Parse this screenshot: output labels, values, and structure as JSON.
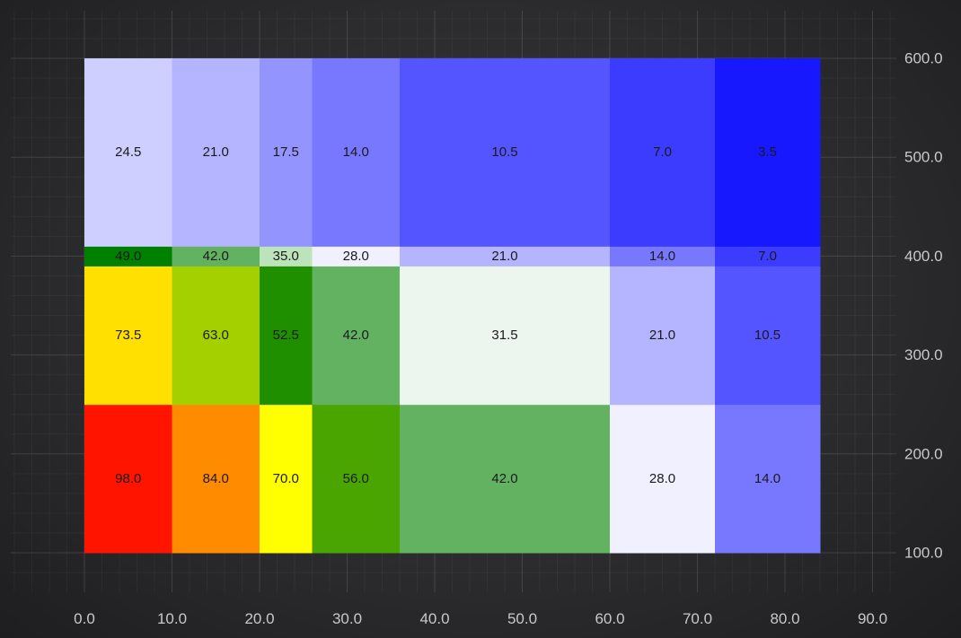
{
  "chart_data": {
    "type": "heatmap",
    "title": "",
    "xlabel": "",
    "ylabel": "",
    "xlim": [
      0,
      90
    ],
    "ylim": [
      100,
      600
    ],
    "x_ticks": [
      "0.0",
      "10.0",
      "20.0",
      "30.0",
      "40.0",
      "50.0",
      "60.0",
      "70.0",
      "80.0",
      "90.0"
    ],
    "y_ticks": [
      "100.0",
      "200.0",
      "300.0",
      "400.0",
      "500.0",
      "600.0"
    ],
    "x_edges": [
      0,
      10,
      20,
      26,
      36,
      60,
      72,
      84
    ],
    "y_edges": [
      100,
      250,
      390,
      410,
      600
    ],
    "grid": true,
    "y_axis_position": "right",
    "cells": [
      [
        {
          "label": "98.0",
          "color": "#ff1400"
        },
        {
          "label": "84.0",
          "color": "#ff8c00"
        },
        {
          "label": "70.0",
          "color": "#ffff00"
        },
        {
          "label": "56.0",
          "color": "#4aa500"
        },
        {
          "label": "42.0",
          "color": "#63b262"
        },
        {
          "label": "28.0",
          "color": "#f0f0ff"
        },
        {
          "label": "14.0",
          "color": "#7878ff"
        }
      ],
      [
        {
          "label": "73.5",
          "color": "#ffe000"
        },
        {
          "label": "63.0",
          "color": "#a4d000"
        },
        {
          "label": "52.5",
          "color": "#1f8f00"
        },
        {
          "label": "42.0",
          "color": "#63b262"
        },
        {
          "label": "31.5",
          "color": "#edf5ef"
        },
        {
          "label": "21.0",
          "color": "#b4b4ff"
        },
        {
          "label": "10.5",
          "color": "#5555ff"
        }
      ],
      [
        {
          "label": "49.0",
          "color": "#008000"
        },
        {
          "label": "42.0",
          "color": "#63b262"
        },
        {
          "label": "35.0",
          "color": "#bde3bb"
        },
        {
          "label": "28.0",
          "color": "#f0f0ff"
        },
        {
          "label": "21.0",
          "color": "#b4b4ff"
        },
        {
          "label": "14.0",
          "color": "#7878ff"
        },
        {
          "label": "7.0",
          "color": "#3c3cff"
        }
      ],
      [
        {
          "label": "24.5",
          "color": "#cfcfff"
        },
        {
          "label": "21.0",
          "color": "#b4b4ff"
        },
        {
          "label": "17.5",
          "color": "#9494ff"
        },
        {
          "label": "14.0",
          "color": "#7878ff"
        },
        {
          "label": "10.5",
          "color": "#5555ff"
        },
        {
          "label": "7.0",
          "color": "#3c3cff"
        },
        {
          "label": "3.5",
          "color": "#1818ff"
        }
      ]
    ]
  }
}
